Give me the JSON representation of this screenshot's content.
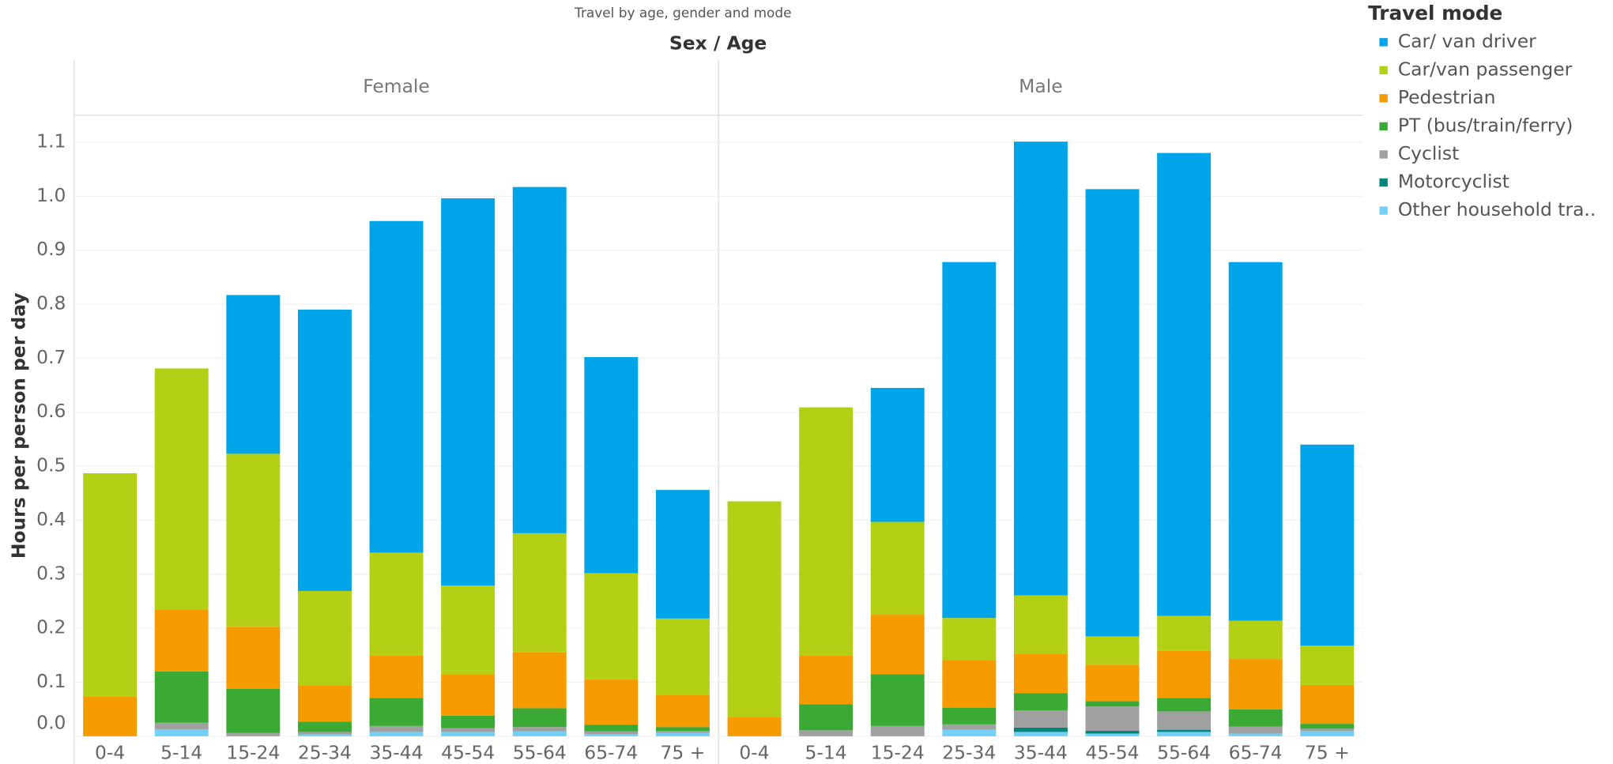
{
  "chart_data": {
    "type": "stacked-bar",
    "title": "Travel by age, gender and mode",
    "column_header": "Sex / Age",
    "y_label": "Hours per person per day",
    "legend_title": "Travel mode",
    "facets": [
      "Female",
      "Male"
    ],
    "categories": [
      "0-4",
      "5-14",
      "15-24",
      "25-34",
      "35-44",
      "45-54",
      "55-64",
      "65-74",
      "75 +"
    ],
    "ylim": [
      0,
      1.15
    ],
    "yticks": [
      {
        "value": 0,
        "label": "0.0"
      },
      0.1,
      0.2,
      0.3,
      0.4,
      0.5,
      0.6,
      0.7,
      0.8,
      0.9,
      {
        "value": 1,
        "label": "1.0"
      },
      1.1
    ],
    "grid": true,
    "series": [
      {
        "name": "Car/ van driver",
        "color": "#00a5e9",
        "values": [
          [
            0,
            0,
            0.294,
            0.521,
            0.614,
            0.717,
            0.641,
            0.4,
            0.238
          ],
          [
            0,
            0,
            0.248,
            0.659,
            0.84,
            0.828,
            0.857,
            0.664,
            0.372
          ]
        ]
      },
      {
        "name": "Car/van passenger",
        "color": "#b3d014",
        "values": [
          [
            0.414,
            0.446,
            0.321,
            0.175,
            0.191,
            0.164,
            0.221,
            0.197,
            0.142
          ],
          [
            0.399,
            0.46,
            0.172,
            0.078,
            0.108,
            0.053,
            0.065,
            0.071,
            0.073
          ]
        ]
      },
      {
        "name": "Pedestrian",
        "color": "#f59b00",
        "values": [
          [
            0.073,
            0.115,
            0.114,
            0.067,
            0.078,
            0.077,
            0.103,
            0.084,
            0.059
          ],
          [
            0.036,
            0.09,
            0.11,
            0.088,
            0.073,
            0.067,
            0.087,
            0.093,
            0.072
          ]
        ]
      },
      {
        "name": "PT (bus/train/ferry)",
        "color": "#3aaa35",
        "values": [
          [
            0,
            0.095,
            0.082,
            0.019,
            0.052,
            0.023,
            0.035,
            0.012,
            0.007
          ],
          [
            0,
            0.048,
            0.096,
            0.031,
            0.032,
            0.01,
            0.025,
            0.032,
            0.009
          ]
        ]
      },
      {
        "name": "Cyclist",
        "color": "#a0a0a0",
        "values": [
          [
            0,
            0.012,
            0.006,
            0.005,
            0.011,
            0.007,
            0.008,
            0.005,
            0.004
          ],
          [
            0,
            0.011,
            0.019,
            0.01,
            0.032,
            0.045,
            0.034,
            0.013,
            0.004
          ]
        ]
      },
      {
        "name": "Motorcyclist",
        "color": "#00877a",
        "values": [
          [
            0,
            0,
            0,
            0,
            0,
            0,
            0,
            0,
            0
          ],
          [
            0,
            0,
            0,
            0,
            0.008,
            0.005,
            0.004,
            0,
            0
          ]
        ]
      },
      {
        "name": "Other household tra..",
        "color": "#73cff5",
        "values": [
          [
            0,
            0.013,
            0,
            0.003,
            0.008,
            0.008,
            0.009,
            0.004,
            0.006
          ],
          [
            0,
            0,
            0,
            0.012,
            0.008,
            0.005,
            0.008,
            0.005,
            0.01
          ]
        ]
      }
    ]
  }
}
